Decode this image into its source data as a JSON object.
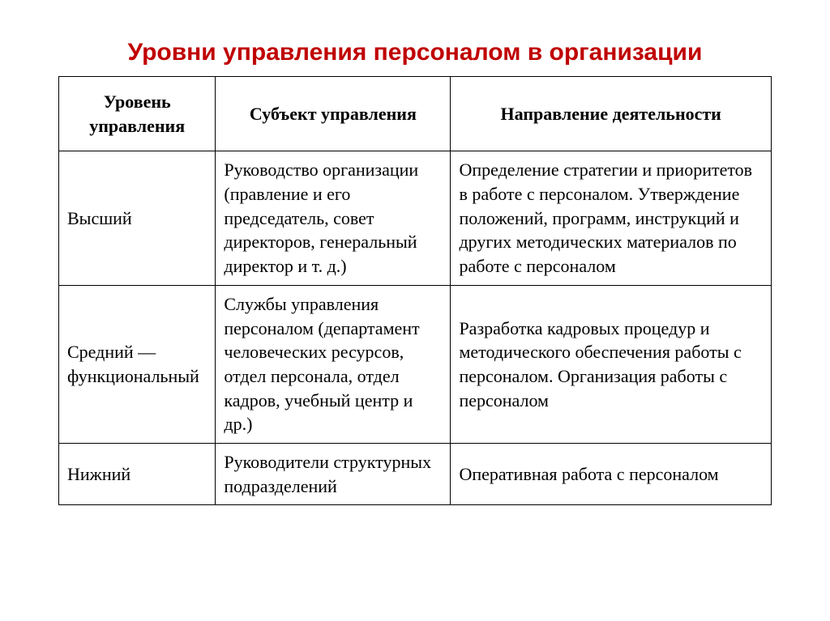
{
  "title": "Уровни управления персоналом в организации",
  "table": {
    "columns": [
      "Уровень управления",
      "Субъект управления",
      "Направление деятельности"
    ],
    "rows": [
      {
        "level": "Высший",
        "subject": "Руководство организации (правление и его председатель, совет директоров, генеральный директор и т. д.)",
        "direction": "Определение стратегии и приоритетов в работе с персоналом. Утверждение положений, программ, инструкций и других методических материалов по работе с персоналом"
      },
      {
        "level": "Средний — функциональный",
        "subject": "Службы управления персоналом (департамент человеческих ресурсов, отдел персонала, отдел кадров, учебный центр и др.)",
        "direction": "Разработка кадровых процедур и методического обеспечения работы с персоналом. Организация работы с персоналом"
      },
      {
        "level": "Нижний",
        "subject": "Руководители структурных подразделений",
        "direction": "Оперативная работа с персоналом"
      }
    ]
  },
  "colors": {
    "title": "#c00000",
    "border": "#000000",
    "background": "#ffffff",
    "text": "#000000"
  },
  "typography": {
    "title_fontsize": 30,
    "title_weight": "bold",
    "title_family": "Arial",
    "cell_fontsize": 22,
    "cell_family": "Times New Roman"
  },
  "layout": {
    "col_widths_pct": [
      22,
      33,
      45
    ]
  }
}
